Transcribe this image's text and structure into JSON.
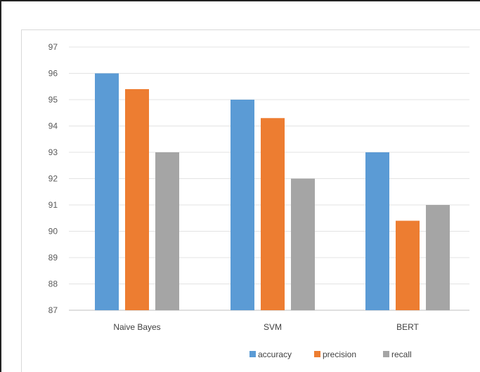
{
  "chart_data": {
    "type": "bar",
    "categories": [
      "Naive Bayes",
      "SVM",
      "BERT"
    ],
    "series": [
      {
        "name": "accuracy",
        "color": "#5b9bd5",
        "values": [
          96,
          95,
          93
        ]
      },
      {
        "name": "precision",
        "color": "#ed7d31",
        "values": [
          95.4,
          94.3,
          90.4
        ]
      },
      {
        "name": "recall",
        "color": "#a5a5a5",
        "values": [
          93,
          92,
          91
        ]
      }
    ],
    "ylim": [
      87,
      97
    ],
    "yticks": [
      87,
      88,
      89,
      90,
      91,
      92,
      93,
      94,
      95,
      96,
      97
    ],
    "grid": true,
    "legend": "bottom"
  }
}
